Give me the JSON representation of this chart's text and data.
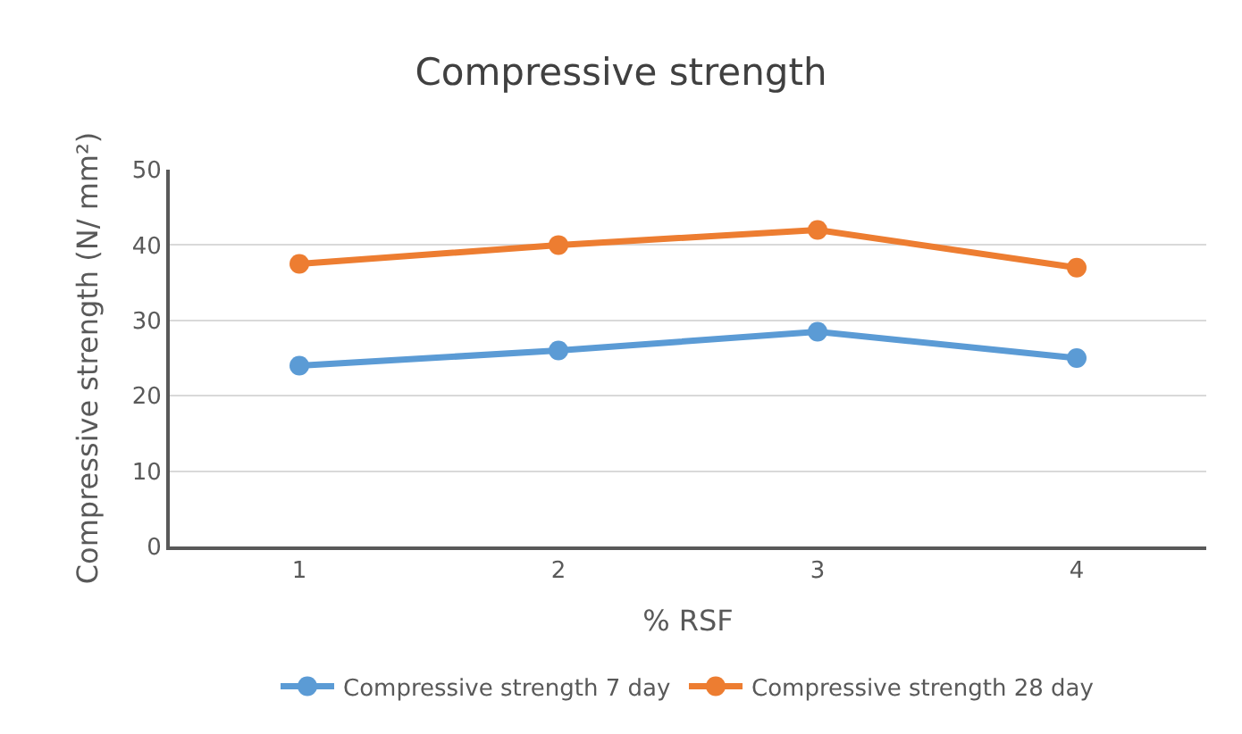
{
  "chart_data": {
    "type": "line",
    "title": "Compressive strength",
    "xlabel": "% RSF",
    "ylabel": "Compressive strength (N/ mm²)",
    "categories": [
      "1",
      "2",
      "3",
      "4"
    ],
    "series": [
      {
        "name": "Compressive strength 7 day",
        "color": "#5b9bd5",
        "values": [
          24,
          26,
          28.5,
          25
        ]
      },
      {
        "name": "Compressive strength 28 day",
        "color": "#ed7d31",
        "values": [
          37.5,
          40,
          42,
          37
        ]
      }
    ],
    "ylim": [
      0,
      50
    ],
    "yticks": [
      0,
      10,
      20,
      30,
      40,
      50
    ],
    "grid": "y",
    "legend": "bottom",
    "marker": "circle",
    "line_style": "solid"
  }
}
